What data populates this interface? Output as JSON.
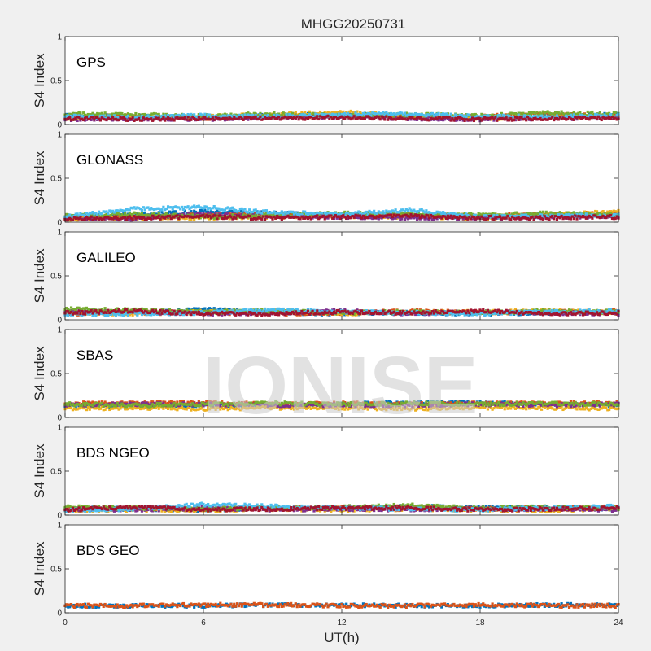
{
  "chart_data": {
    "type": "scatter",
    "title": "MHGG20250731",
    "watermark": "IONISE",
    "xlabel": "UT(h)",
    "ylabel": "S4 Index",
    "xlim": [
      0,
      24
    ],
    "ylim": [
      0,
      1
    ],
    "xticks": [
      "0",
      "6",
      "12",
      "18",
      "24"
    ],
    "yticks": [
      "0",
      "0.5",
      "1"
    ],
    "colors": [
      "#0072bd",
      "#d95319",
      "#edb120",
      "#7e2f8e",
      "#77ac30",
      "#4dbeee",
      "#a2142f"
    ],
    "panels": [
      {
        "label": "GPS",
        "series": [
          {
            "color": "#0072bd",
            "x": [
              0,
              3,
              6,
              9,
              12,
              15,
              18,
              21,
              24
            ],
            "y": [
              0.1,
              0.09,
              0.08,
              0.1,
              0.12,
              0.09,
              0.08,
              0.1,
              0.11
            ]
          },
          {
            "color": "#d95319",
            "x": [
              0,
              3,
              6,
              9,
              12,
              15,
              18,
              21,
              24
            ],
            "y": [
              0.08,
              0.1,
              0.07,
              0.09,
              0.1,
              0.08,
              0.09,
              0.12,
              0.09
            ]
          },
          {
            "color": "#edb120",
            "x": [
              0,
              3,
              6,
              9,
              12,
              15,
              18,
              21,
              24
            ],
            "y": [
              0.07,
              0.08,
              0.09,
              0.11,
              0.14,
              0.1,
              0.07,
              0.08,
              0.1
            ]
          },
          {
            "color": "#7e2f8e",
            "x": [
              0,
              3,
              6,
              9,
              12,
              15,
              18,
              21,
              24
            ],
            "y": [
              0.06,
              0.07,
              0.06,
              0.08,
              0.09,
              0.07,
              0.06,
              0.07,
              0.08
            ]
          },
          {
            "color": "#77ac30",
            "x": [
              0,
              3,
              6,
              9,
              12,
              15,
              18,
              21,
              24
            ],
            "y": [
              0.12,
              0.11,
              0.1,
              0.12,
              0.1,
              0.11,
              0.1,
              0.13,
              0.12
            ]
          },
          {
            "color": "#4dbeee",
            "x": [
              0,
              3,
              6,
              9,
              12,
              15,
              18,
              21,
              24
            ],
            "y": [
              0.09,
              0.08,
              0.1,
              0.09,
              0.11,
              0.12,
              0.09,
              0.09,
              0.1
            ]
          },
          {
            "color": "#a2142f",
            "x": [
              0,
              3,
              6,
              9,
              12,
              15,
              18,
              21,
              24
            ],
            "y": [
              0.07,
              0.06,
              0.07,
              0.07,
              0.08,
              0.07,
              0.06,
              0.07,
              0.07
            ]
          }
        ]
      },
      {
        "label": "GLONASS",
        "series": [
          {
            "color": "#0072bd",
            "x": [
              0,
              3,
              6,
              9,
              12,
              15,
              18,
              21,
              24
            ],
            "y": [
              0.06,
              0.08,
              0.12,
              0.1,
              0.08,
              0.07,
              0.06,
              0.08,
              0.09
            ]
          },
          {
            "color": "#d95319",
            "x": [
              0,
              3,
              6,
              9,
              12,
              15,
              18,
              21,
              24
            ],
            "y": [
              0.05,
              0.06,
              0.08,
              0.09,
              0.07,
              0.08,
              0.07,
              0.09,
              0.1
            ]
          },
          {
            "color": "#edb120",
            "x": [
              0,
              3,
              6,
              9,
              12,
              15,
              18,
              21,
              24
            ],
            "y": [
              0.04,
              0.05,
              0.05,
              0.06,
              0.07,
              0.06,
              0.05,
              0.08,
              0.12
            ]
          },
          {
            "color": "#7e2f8e",
            "x": [
              0,
              3,
              6,
              9,
              12,
              15,
              18,
              21,
              24
            ],
            "y": [
              0.05,
              0.04,
              0.09,
              0.07,
              0.06,
              0.05,
              0.05,
              0.06,
              0.07
            ]
          },
          {
            "color": "#77ac30",
            "x": [
              0,
              3,
              6,
              9,
              12,
              15,
              18,
              21,
              24
            ],
            "y": [
              0.07,
              0.09,
              0.06,
              0.08,
              0.1,
              0.09,
              0.08,
              0.1,
              0.08
            ]
          },
          {
            "color": "#4dbeee",
            "x": [
              0,
              3,
              6,
              9,
              12,
              15,
              18,
              21,
              24
            ],
            "y": [
              0.06,
              0.15,
              0.17,
              0.11,
              0.09,
              0.14,
              0.06,
              0.07,
              0.08
            ]
          },
          {
            "color": "#a2142f",
            "x": [
              0,
              3,
              6,
              9,
              12,
              15,
              18,
              21,
              24
            ],
            "y": [
              0.04,
              0.05,
              0.06,
              0.05,
              0.06,
              0.07,
              0.05,
              0.05,
              0.06
            ]
          }
        ]
      },
      {
        "label": "GALILEO",
        "series": [
          {
            "color": "#0072bd",
            "x": [
              0,
              3,
              6,
              9,
              12,
              15,
              18,
              21,
              24
            ],
            "y": [
              0.09,
              0.08,
              0.12,
              0.08,
              0.07,
              0.08,
              0.07,
              0.08,
              0.09
            ]
          },
          {
            "color": "#d95319",
            "x": [
              0,
              3,
              6,
              9,
              12,
              15,
              18,
              21,
              24
            ],
            "y": [
              0.07,
              0.09,
              0.08,
              0.07,
              0.08,
              0.1,
              0.08,
              0.09,
              0.1
            ]
          },
          {
            "color": "#edb120",
            "x": [
              0,
              3,
              6,
              9,
              12,
              15,
              18,
              21,
              24
            ],
            "y": [
              0.08,
              0.07,
              0.09,
              0.1,
              0.07,
              0.08,
              0.09,
              0.1,
              0.08
            ]
          },
          {
            "color": "#7e2f8e",
            "x": [
              0,
              3,
              6,
              9,
              12,
              15,
              18,
              21,
              24
            ],
            "y": [
              0.1,
              0.09,
              0.07,
              0.08,
              0.1,
              0.07,
              0.09,
              0.08,
              0.07
            ]
          },
          {
            "color": "#77ac30",
            "x": [
              0,
              3,
              6,
              9,
              12,
              15,
              18,
              21,
              24
            ],
            "y": [
              0.12,
              0.11,
              0.09,
              0.1,
              0.08,
              0.09,
              0.08,
              0.1,
              0.09
            ]
          },
          {
            "color": "#4dbeee",
            "x": [
              0,
              3,
              6,
              9,
              12,
              15,
              18,
              21,
              24
            ],
            "y": [
              0.06,
              0.07,
              0.08,
              0.11,
              0.09,
              0.08,
              0.07,
              0.09,
              0.1
            ]
          },
          {
            "color": "#a2142f",
            "x": [
              0,
              3,
              6,
              9,
              12,
              15,
              18,
              21,
              24
            ],
            "y": [
              0.08,
              0.1,
              0.07,
              0.07,
              0.09,
              0.08,
              0.1,
              0.07,
              0.08
            ]
          }
        ]
      },
      {
        "label": "SBAS",
        "series": [
          {
            "color": "#0072bd",
            "x": [
              0,
              3,
              6,
              9,
              12,
              15,
              18,
              21,
              24
            ],
            "y": [
              0.13,
              0.13,
              0.14,
              0.14,
              0.15,
              0.17,
              0.17,
              0.15,
              0.14
            ]
          },
          {
            "color": "#d95319",
            "x": [
              0,
              3,
              6,
              9,
              12,
              15,
              18,
              21,
              24
            ],
            "y": [
              0.16,
              0.16,
              0.17,
              0.15,
              0.16,
              0.15,
              0.16,
              0.16,
              0.17
            ]
          },
          {
            "color": "#edb120",
            "x": [
              0,
              3,
              6,
              9,
              12,
              15,
              18,
              21,
              24
            ],
            "y": [
              0.1,
              0.11,
              0.1,
              0.11,
              0.11,
              0.1,
              0.11,
              0.11,
              0.1
            ]
          },
          {
            "color": "#7e2f8e",
            "x": [
              0,
              3,
              6,
              9,
              12,
              15,
              18,
              21,
              24
            ],
            "y": [
              0.14,
              0.15,
              0.15,
              0.14,
              0.14,
              0.14,
              0.15,
              0.14,
              0.15
            ]
          },
          {
            "color": "#77ac30",
            "x": [
              0,
              3,
              6,
              9,
              12,
              15,
              18,
              21,
              24
            ],
            "y": [
              0.15,
              0.14,
              0.15,
              0.16,
              0.15,
              0.16,
              0.15,
              0.16,
              0.15
            ]
          }
        ]
      },
      {
        "label": "BDS NGEO",
        "series": [
          {
            "color": "#0072bd",
            "x": [
              0,
              3,
              6,
              9,
              12,
              15,
              18,
              21,
              24
            ],
            "y": [
              0.08,
              0.07,
              0.06,
              0.08,
              0.07,
              0.1,
              0.08,
              0.09,
              0.07
            ]
          },
          {
            "color": "#d95319",
            "x": [
              0,
              3,
              6,
              9,
              12,
              15,
              18,
              21,
              24
            ],
            "y": [
              0.06,
              0.08,
              0.07,
              0.09,
              0.08,
              0.09,
              0.07,
              0.08,
              0.09
            ]
          },
          {
            "color": "#edb120",
            "x": [
              0,
              3,
              6,
              9,
              12,
              15,
              18,
              21,
              24
            ],
            "y": [
              0.05,
              0.06,
              0.05,
              0.07,
              0.06,
              0.07,
              0.06,
              0.05,
              0.08
            ]
          },
          {
            "color": "#7e2f8e",
            "x": [
              0,
              3,
              6,
              9,
              12,
              15,
              18,
              21,
              24
            ],
            "y": [
              0.07,
              0.06,
              0.08,
              0.06,
              0.07,
              0.06,
              0.07,
              0.07,
              0.06
            ]
          },
          {
            "color": "#77ac30",
            "x": [
              0,
              3,
              6,
              9,
              12,
              15,
              18,
              21,
              24
            ],
            "y": [
              0.09,
              0.08,
              0.07,
              0.08,
              0.09,
              0.11,
              0.08,
              0.09,
              0.08
            ]
          },
          {
            "color": "#4dbeee",
            "x": [
              0,
              3,
              6,
              9,
              12,
              15,
              18,
              21,
              24
            ],
            "y": [
              0.05,
              0.07,
              0.12,
              0.1,
              0.08,
              0.07,
              0.06,
              0.08,
              0.1
            ]
          },
          {
            "color": "#a2142f",
            "x": [
              0,
              3,
              6,
              9,
              12,
              15,
              18,
              21,
              24
            ],
            "y": [
              0.06,
              0.09,
              0.06,
              0.07,
              0.08,
              0.08,
              0.06,
              0.07,
              0.08
            ]
          }
        ]
      },
      {
        "label": "BDS GEO",
        "series": [
          {
            "color": "#0072bd",
            "x": [
              0,
              3,
              6,
              9,
              12,
              15,
              18,
              21,
              24
            ],
            "y": [
              0.08,
              0.08,
              0.08,
              0.09,
              0.09,
              0.08,
              0.08,
              0.09,
              0.09
            ]
          },
          {
            "color": "#d95319",
            "x": [
              0,
              3,
              6,
              9,
              12,
              15,
              18,
              21,
              24
            ],
            "y": [
              0.08,
              0.08,
              0.09,
              0.09,
              0.08,
              0.08,
              0.09,
              0.08,
              0.08
            ]
          }
        ]
      }
    ]
  }
}
